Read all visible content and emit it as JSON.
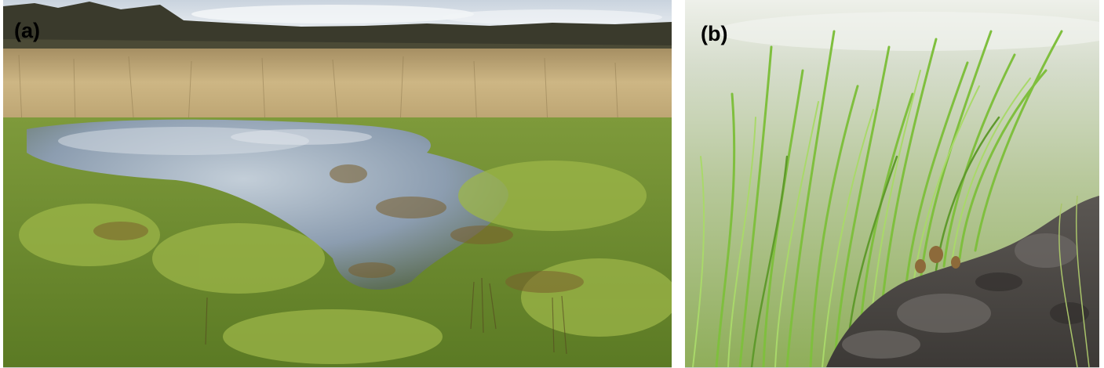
{
  "panels": [
    {
      "label": "(a)",
      "palette": {
        "sky": "#dfe6ee",
        "cloud": "#f4f6f8",
        "treeline": "#3b3a2e",
        "dry_grass": "#c8b07c",
        "dry_grass_dark": "#9f8a5c",
        "water": "#7f93a6",
        "water_light": "#b9c7d4",
        "moss": "#6f8f2e",
        "moss_light": "#9cb548",
        "rush": "#6b5a2f"
      }
    },
    {
      "label": "(b)",
      "palette": {
        "background": "#c7d3b4",
        "background_light": "#e8ece2",
        "grass": "#76b83a",
        "grass_light": "#a8d86a",
        "soil": "#4a4744",
        "soil_light": "#6e6a66",
        "stem_base": "#8d6a3a"
      }
    }
  ]
}
